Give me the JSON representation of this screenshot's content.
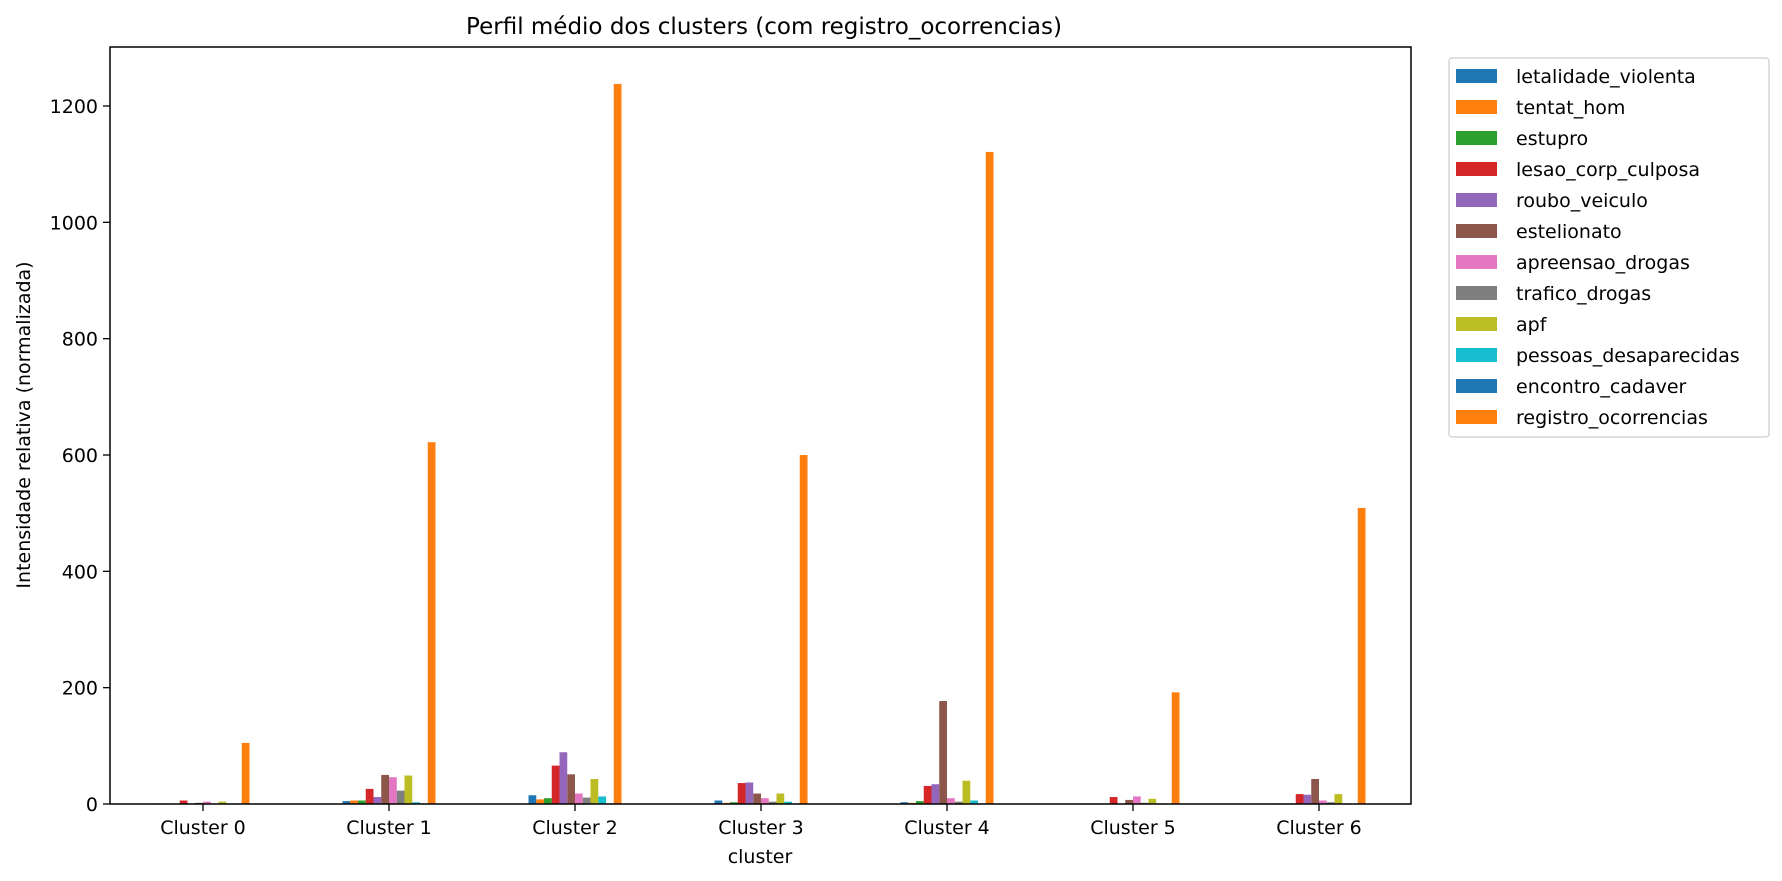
{
  "chart_data": {
    "type": "bar",
    "title": "Perfil médio dos clusters (com registro_ocorrencias)",
    "xlabel": "cluster",
    "ylabel": "Intensidade relativa (normalizada)",
    "ylim": [
      0,
      1300
    ],
    "yticks": [
      0,
      200,
      400,
      600,
      800,
      1000,
      1200
    ],
    "grid": false,
    "legend_position": "outside-right",
    "categories": [
      "Cluster 0",
      "Cluster 1",
      "Cluster 2",
      "Cluster 3",
      "Cluster 4",
      "Cluster 5",
      "Cluster 6"
    ],
    "series": [
      {
        "name": "letalidade_violenta",
        "color": "#1f77b4",
        "values": [
          1,
          5,
          15,
          6,
          3,
          1,
          1
        ]
      },
      {
        "name": "tentat_hom",
        "color": "#ff7f0e",
        "values": [
          0,
          6,
          8,
          2,
          2,
          0,
          1
        ]
      },
      {
        "name": "estupro",
        "color": "#2ca02c",
        "values": [
          0,
          6,
          10,
          3,
          5,
          1,
          1
        ]
      },
      {
        "name": "lesao_corp_culposa",
        "color": "#d62728",
        "values": [
          6,
          26,
          66,
          36,
          31,
          12,
          17
        ]
      },
      {
        "name": "roubo_veiculo",
        "color": "#9467bd",
        "values": [
          1,
          12,
          89,
          37,
          34,
          1,
          16
        ]
      },
      {
        "name": "estelionato",
        "color": "#8c564b",
        "values": [
          2,
          50,
          51,
          18,
          177,
          7,
          43
        ]
      },
      {
        "name": "apreensao_drogas",
        "color": "#e377c2",
        "values": [
          4,
          46,
          18,
          10,
          10,
          13,
          6
        ]
      },
      {
        "name": "trafico_drogas",
        "color": "#7f7f7f",
        "values": [
          1,
          23,
          11,
          4,
          4,
          2,
          3
        ]
      },
      {
        "name": "apf",
        "color": "#bcbd22",
        "values": [
          4,
          49,
          43,
          18,
          40,
          9,
          17
        ]
      },
      {
        "name": "pessoas_desaparecidas",
        "color": "#17becf",
        "values": [
          1,
          3,
          13,
          4,
          6,
          1,
          1
        ]
      },
      {
        "name": "encontro_cadaver",
        "color": "#1f77b4",
        "values": [
          0,
          1,
          1,
          1,
          1,
          0,
          0
        ]
      },
      {
        "name": "registro_ocorrencias",
        "color": "#ff7f0e",
        "values": [
          105,
          622,
          1238,
          600,
          1121,
          192,
          509
        ]
      }
    ]
  }
}
